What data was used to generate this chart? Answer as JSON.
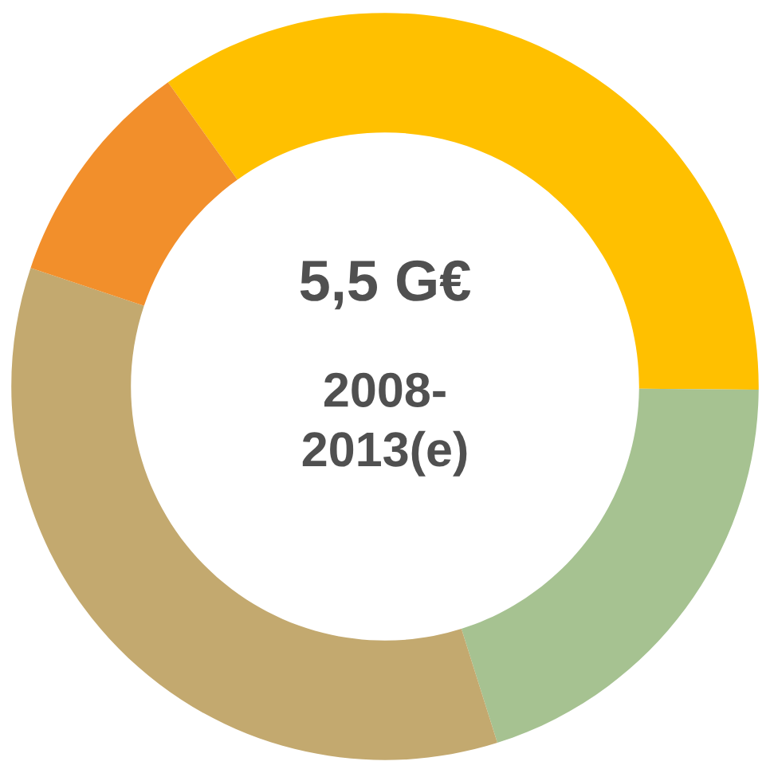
{
  "chart_data": {
    "type": "donut",
    "categories": [
      null,
      null,
      null,
      null
    ],
    "values": [
      35,
      20,
      35,
      10
    ],
    "colors": [
      "#ffc000",
      "#a6c291",
      "#c3a96f",
      "#f28f2b"
    ],
    "annotations": [
      "5,5 G€",
      "2008-\n2013(e)"
    ]
  }
}
